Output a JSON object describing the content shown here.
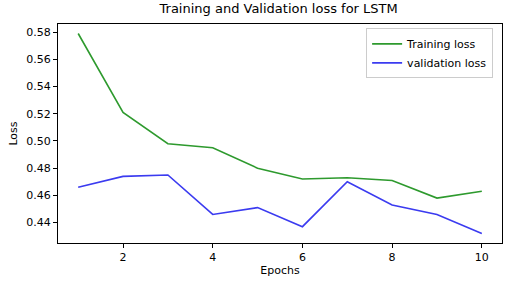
{
  "chart_data": {
    "type": "line",
    "title": "Training and Validation loss for LSTM",
    "x_label": "Epochs",
    "y_label": "Loss",
    "x": [
      1,
      2,
      3,
      4,
      5,
      6,
      7,
      8,
      9,
      10
    ],
    "series": [
      {
        "name": "Training loss",
        "color": "#2e9a2e",
        "values": [
          0.579,
          0.521,
          0.498,
          0.495,
          0.48,
          0.472,
          0.473,
          0.471,
          0.458,
          0.463
        ]
      },
      {
        "name": "validation loss",
        "color": "#3b3bf0",
        "values": [
          0.466,
          0.474,
          0.475,
          0.446,
          0.451,
          0.437,
          0.47,
          0.453,
          0.446,
          0.432
        ]
      }
    ],
    "xlim": [
      0.55,
      10.45
    ],
    "xticks": [
      2,
      4,
      6,
      8,
      10
    ],
    "ylim": [
      0.425,
      0.586
    ],
    "yticks": [
      0.44,
      0.46,
      0.48,
      {
        "value": 0.5,
        "label": "0.50"
      },
      0.52,
      0.54,
      0.56,
      0.58
    ],
    "grid": false,
    "legend": "upper right"
  }
}
